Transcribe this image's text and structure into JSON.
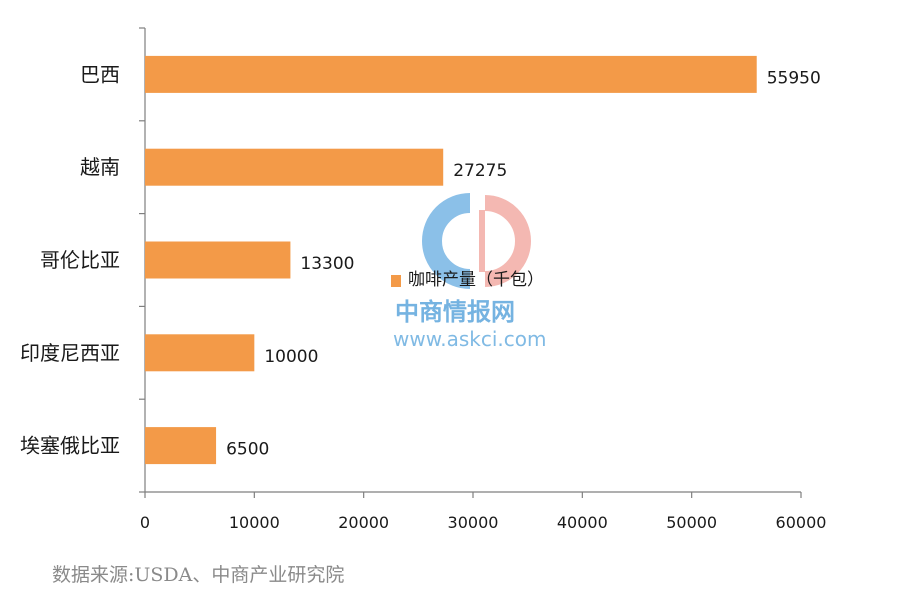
{
  "chart_data": {
    "type": "bar",
    "orientation": "horizontal",
    "categories": [
      "巴西",
      "越南",
      "哥伦比亚",
      "印度尼西亚",
      "埃塞俄比亚"
    ],
    "series": [
      {
        "name": "咖啡产量（千包）",
        "values": [
          55950,
          27275,
          13300,
          10000,
          6500
        ]
      }
    ],
    "data_labels": [
      "55950",
      "27275",
      "13300",
      "10000",
      "6500"
    ],
    "xlim": [
      0,
      60000
    ],
    "x_ticks": [
      0,
      10000,
      20000,
      30000,
      40000,
      50000,
      60000
    ],
    "x_tick_labels": [
      "0",
      "10000",
      "20000",
      "30000",
      "40000",
      "50000",
      "60000"
    ],
    "grid": false,
    "legend_placement": "center",
    "bar_color": "#f39a48",
    "axis_color": "#7f7f7f"
  },
  "watermark": {
    "brand": "中商情报网",
    "url": "www.askci.com",
    "colors": [
      "#5ea6dc",
      "#e8786e"
    ]
  },
  "source": "数据来源:USDA、中商产业研究院"
}
